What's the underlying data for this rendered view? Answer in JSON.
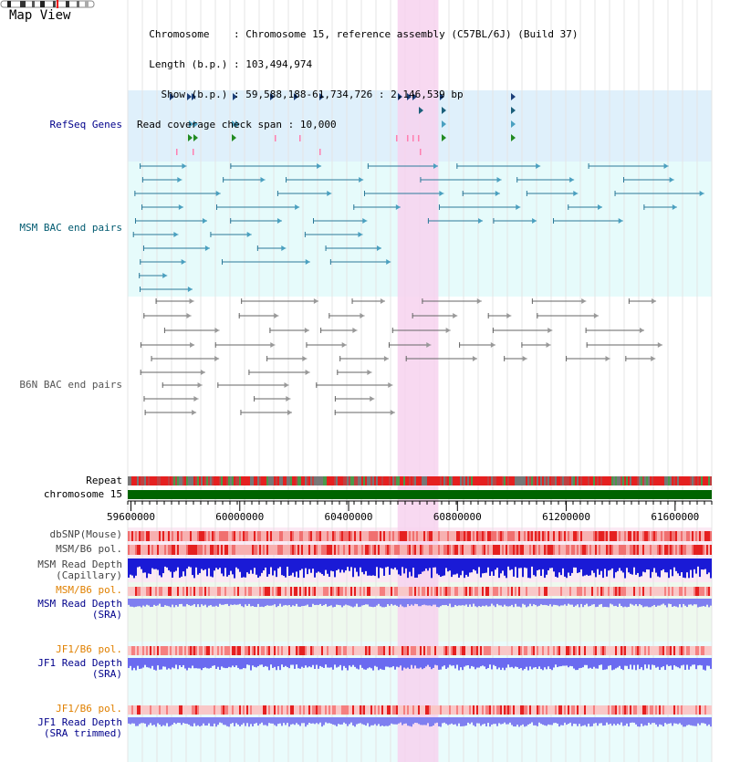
{
  "page": {
    "title": "Map View"
  },
  "header": {
    "chromosome_label": "Chromosome",
    "chromosome_value": "Chromosome 15, reference assembly (C57BL/6J) (Build 37)",
    "length_label": "Length (b.p.)",
    "length_value": "103,494,974",
    "show_label": "Show (b.p.)",
    "show_value": "59,588,188-61,734,726 : 2,146,539 bp",
    "coverage_label": "Read coverage check span",
    "coverage_value": "10,000"
  },
  "tracks": {
    "refseq": "RefSeq Genes",
    "msm_bac": "MSM BAC end pairs",
    "b6n_bac": "B6N BAC end pairs",
    "repeat": "Repeat",
    "chromosome": "chromosome 15",
    "dbsnp": "dbSNP(Mouse)",
    "msm_b6_pol": "MSM/B6 pol.",
    "msm_depth_cap_1": "MSM Read Depth",
    "msm_depth_cap_2": "(Capillary)",
    "msm_b6_pol_sra": "MSM/B6 pol.",
    "msm_depth_sra_1": "MSM Read Depth",
    "msm_depth_sra_2": "(SRA)",
    "jf1_b6_pol": "JF1/B6 pol.",
    "jf1_depth_sra_1": "JF1 Read Depth",
    "jf1_depth_sra_2": "(SRA)",
    "jf1_b6_pol_trim": "JF1/B6 pol.",
    "jf1_depth_trim_1": "JF1 Read Depth",
    "jf1_depth_trim_2": "(SRA trimmed)"
  },
  "axis": {
    "ticks": [
      "59600000",
      "60000000",
      "60400000",
      "60800000",
      "61200000",
      "61600000"
    ],
    "tick_values": [
      59600000,
      60000000,
      60400000,
      60800000,
      61200000,
      61600000
    ],
    "range_start": 59588188,
    "range_end": 61734726
  },
  "highlight": {
    "start": 60580000,
    "end": 60730000
  },
  "colors": {
    "refseq_bg": "#dff0fb",
    "refseq_label": "#00008b",
    "msm_bac_label": "#005a70",
    "msm_bac_line": "#2c7a9a",
    "b6n_label": "#555555",
    "b6n_line": "#666666",
    "highlight": "#f7d2ef",
    "chromosome_bar": "#006400",
    "pol_orange": "#e08000",
    "depth_blue": "#1a1ad6",
    "depth_sra": "#7f7ff0",
    "label_navy": "#00008b"
  }
}
